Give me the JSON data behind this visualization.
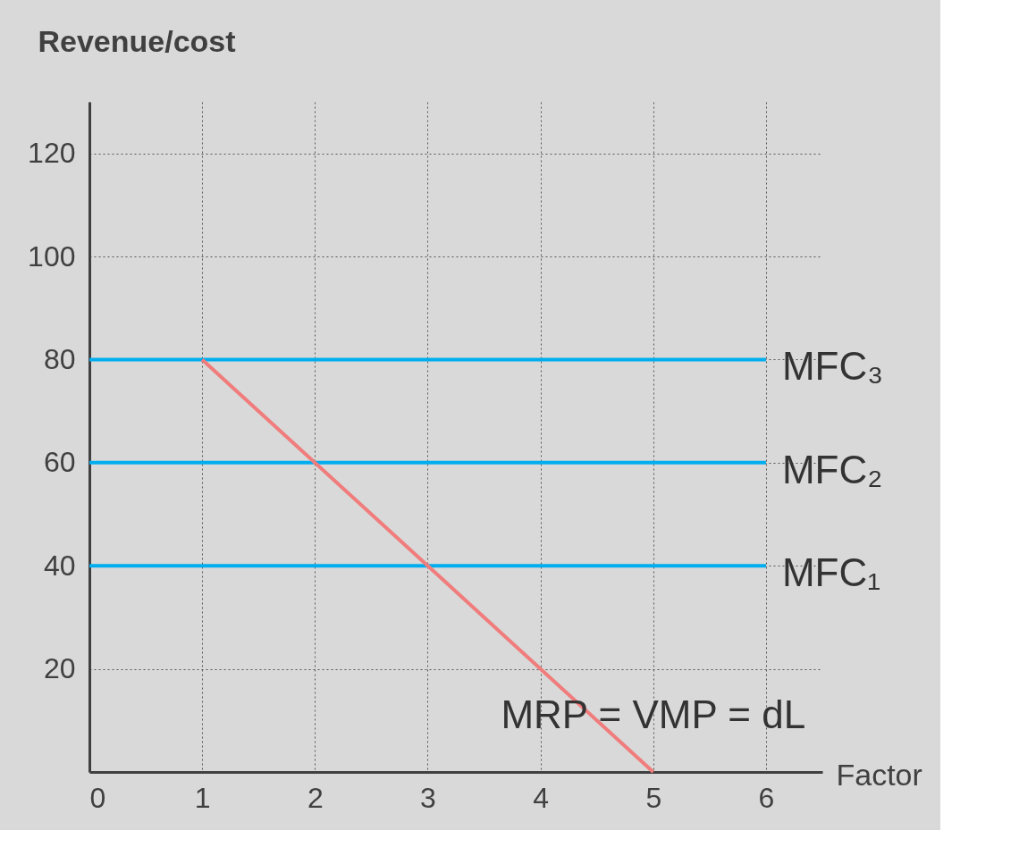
{
  "chart_data": {
    "type": "line",
    "xlabel": "Factor",
    "ylabel": "Revenue/cost",
    "xlim": [
      0,
      6.5
    ],
    "ylim": [
      0,
      130
    ],
    "xticks": [
      0,
      1,
      2,
      3,
      4,
      5,
      6
    ],
    "yticks": [
      {
        "value": 0,
        "label": null
      },
      20,
      40,
      60,
      80,
      100,
      120
    ],
    "grid": true,
    "marker": "none",
    "line_style": "solid",
    "series": [
      {
        "name": "MFC₃",
        "color": "#00aeef",
        "x": [
          0,
          6
        ],
        "values": [
          80,
          80
        ]
      },
      {
        "name": "MFC₂",
        "color": "#00aeef",
        "x": [
          0,
          6
        ],
        "values": [
          60,
          60
        ]
      },
      {
        "name": "MFC₁",
        "color": "#00aeef",
        "x": [
          0,
          6
        ],
        "values": [
          40,
          40
        ]
      },
      {
        "name": "MRP = VMP = dL",
        "color": "#f07c7c",
        "x": [
          1,
          5
        ],
        "values": [
          80,
          0
        ]
      }
    ]
  }
}
